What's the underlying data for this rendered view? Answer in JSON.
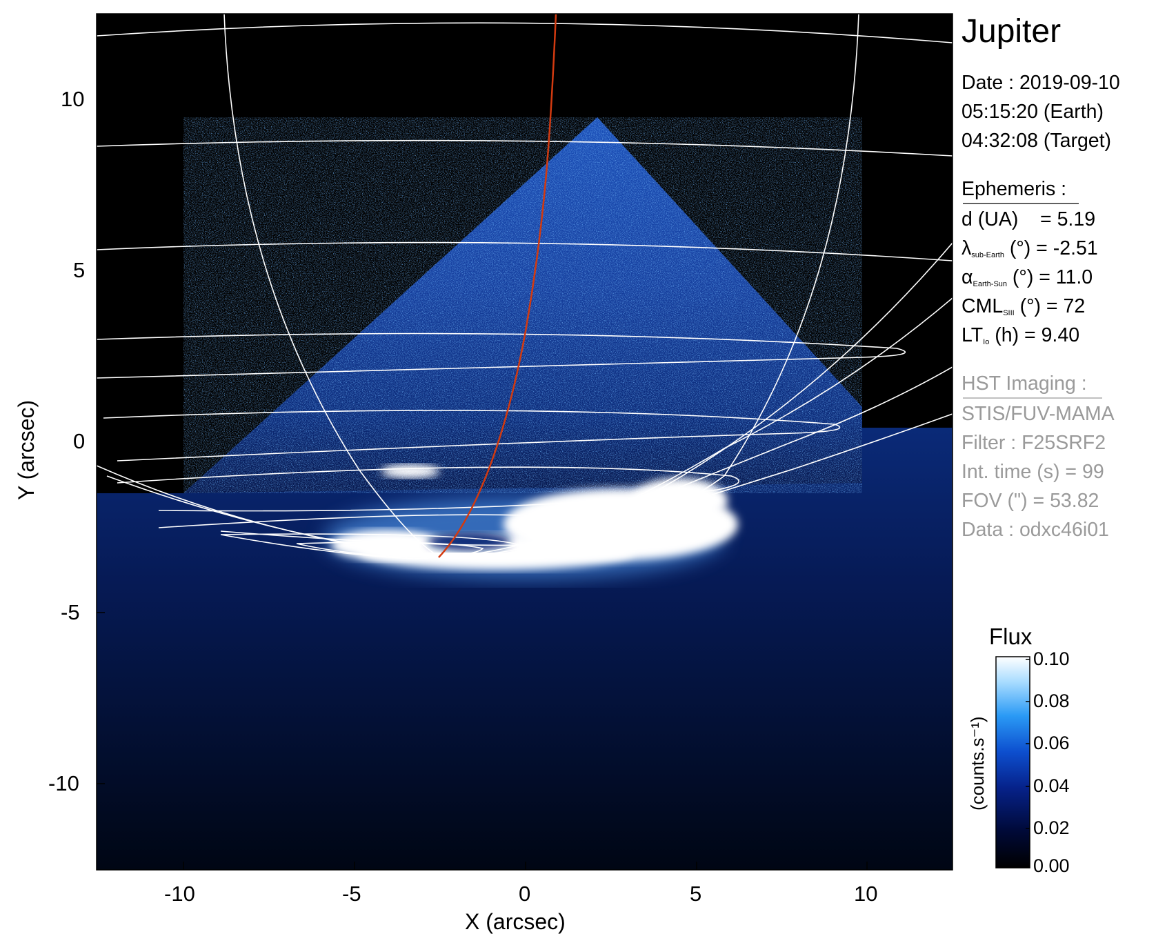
{
  "image": {
    "title": "Jupiter",
    "x_label": "X (arcsec)",
    "y_label": "Y (arcsec)",
    "x_ticks": [
      "-10",
      "-5",
      "0",
      "5",
      "10"
    ],
    "y_ticks": [
      "10",
      "5",
      "0",
      "-5",
      "-10"
    ],
    "x_range": [
      -12.5,
      12.5
    ],
    "y_range": [
      -12.5,
      12.5
    ]
  },
  "info": {
    "date_line": "Date : 2019-09-10",
    "earth_time": "05:15:20 (Earth)",
    "target_time": "04:32:08 (Target)",
    "ephemeris": {
      "header": "Ephemeris :",
      "distance": "d (UA)    = 5.19",
      "lat_symbol": "λ",
      "lat_sub": "sub-Earth",
      "lat_rest": " (°) = -2.51",
      "alpha_symbol": "α",
      "alpha_sub": "Earth-Sun",
      "alpha_rest": " (°) = 11.0",
      "cml_main": "CML",
      "cml_sub": "SIII",
      "cml_rest": " (°) = 72",
      "lt_main": "LT",
      "lt_sub": "Io",
      "lt_rest": " (h) = 9.40"
    },
    "hst": {
      "header": "HST Imaging :",
      "instrument": "STIS/FUV-MAMA",
      "filter": "Filter : F25SRF2",
      "int_time": "Int. time (s) = 99",
      "fov": "FOV (\") = 53.82",
      "data_id": "Data : odxc46i01"
    }
  },
  "colorbar": {
    "title": "Flux",
    "label": "(counts.s⁻¹)",
    "ticks": [
      "0.10",
      "0.08",
      "0.06",
      "0.04",
      "0.02",
      "0.00"
    ],
    "colors": [
      "#000000",
      "#000a3a",
      "#06228a",
      "#0d4fcf",
      "#2a9af5",
      "#a8dcff",
      "#ffffff"
    ]
  },
  "colors": {
    "grid": "#ffffff",
    "footpath": "#d23a10",
    "background": "#000000"
  }
}
